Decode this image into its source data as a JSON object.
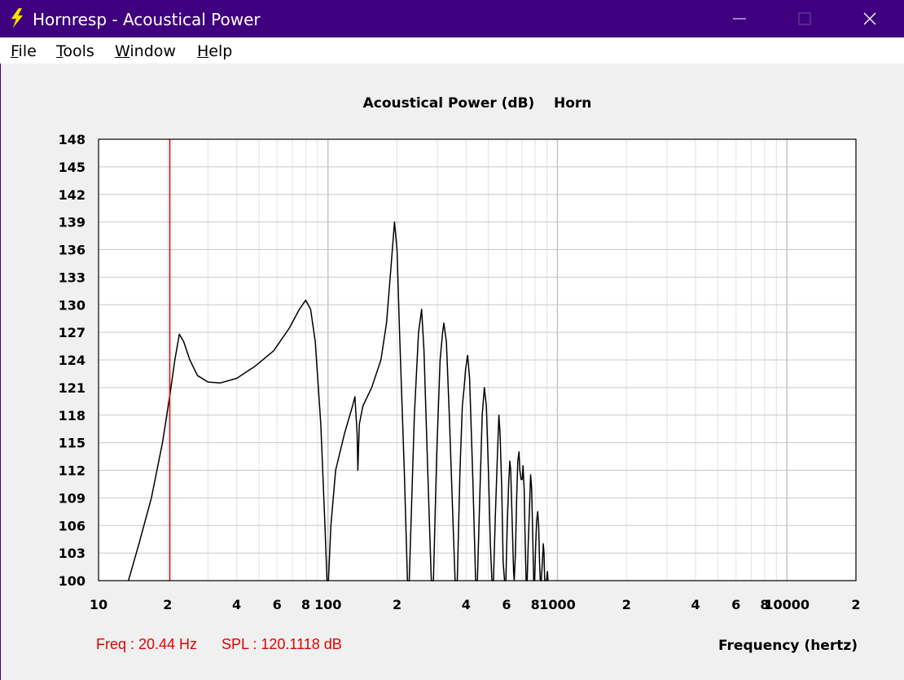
{
  "window": {
    "title": "Hornresp - Acoustical Power",
    "controls": [
      "minimize",
      "maximize",
      "close"
    ]
  },
  "menu": {
    "items": [
      {
        "label": "File",
        "mnemonic": "F"
      },
      {
        "label": "Tools",
        "mnemonic": "T"
      },
      {
        "label": "Window",
        "mnemonic": "W"
      },
      {
        "label": "Help",
        "mnemonic": "H"
      }
    ]
  },
  "status": {
    "freq": "Freq : 20.44 Hz",
    "spl": "SPL : 120.1118 dB"
  },
  "colors": {
    "titlebar": "#3f007f",
    "cursor": "#e00000",
    "curve": "#000000",
    "grid": "#c8c8c8"
  },
  "chart_data": {
    "type": "line",
    "title": "Acoustical Power (dB)    Horn",
    "xlabel": "Frequency (hertz)",
    "ylabel": "",
    "x_scale": "log",
    "xlim": [
      10,
      20000
    ],
    "ylim": [
      100,
      148
    ],
    "y_ticks": [
      100,
      103,
      106,
      109,
      112,
      115,
      118,
      121,
      124,
      127,
      130,
      133,
      136,
      139,
      142,
      145,
      148
    ],
    "x_tick_labels": [
      {
        "value": 10,
        "label": "10"
      },
      {
        "value": 20,
        "label": "2"
      },
      {
        "value": 40,
        "label": "4"
      },
      {
        "value": 60,
        "label": "6"
      },
      {
        "value": 80,
        "label": "8"
      },
      {
        "value": 100,
        "label": "100"
      },
      {
        "value": 200,
        "label": "2"
      },
      {
        "value": 400,
        "label": "4"
      },
      {
        "value": 600,
        "label": "6"
      },
      {
        "value": 800,
        "label": "8"
      },
      {
        "value": 1000,
        "label": "1000"
      },
      {
        "value": 2000,
        "label": "2"
      },
      {
        "value": 4000,
        "label": "4"
      },
      {
        "value": 6000,
        "label": "6"
      },
      {
        "value": 8000,
        "label": "8"
      },
      {
        "value": 10000,
        "label": "10000"
      },
      {
        "value": 20000,
        "label": "2"
      }
    ],
    "grid": true,
    "cursor_freq": 20.44,
    "series": [
      {
        "points": [
          [
            13.5,
            100
          ],
          [
            15,
            104
          ],
          [
            17,
            109
          ],
          [
            19,
            115
          ],
          [
            20.44,
            120.1
          ],
          [
            21.5,
            124
          ],
          [
            22.5,
            126.8
          ],
          [
            23.5,
            126
          ],
          [
            25,
            124
          ],
          [
            27,
            122.3
          ],
          [
            30,
            121.6
          ],
          [
            34,
            121.5
          ],
          [
            40,
            122
          ],
          [
            48,
            123.3
          ],
          [
            58,
            125
          ],
          [
            68,
            127.5
          ],
          [
            75,
            129.5
          ],
          [
            80,
            130.5
          ],
          [
            84,
            129.5
          ],
          [
            88,
            126
          ],
          [
            93,
            117
          ],
          [
            97,
            106
          ],
          [
            99,
            100
          ],
          [
            100.5,
            100
          ],
          [
            103,
            106
          ],
          [
            108,
            112
          ],
          [
            118,
            116
          ],
          [
            128,
            119
          ],
          [
            131,
            120
          ],
          [
            134,
            116
          ],
          [
            135,
            112
          ],
          [
            137,
            117
          ],
          [
            142,
            119
          ],
          [
            155,
            121
          ],
          [
            170,
            124
          ],
          [
            180,
            128
          ],
          [
            188,
            134
          ],
          [
            195,
            139
          ],
          [
            200,
            136
          ],
          [
            205,
            127
          ],
          [
            215,
            112
          ],
          [
            222,
            100
          ],
          [
            226,
            100
          ],
          [
            238,
            118
          ],
          [
            248,
            127
          ],
          [
            256,
            129.5
          ],
          [
            262,
            125
          ],
          [
            272,
            112
          ],
          [
            282,
            100
          ],
          [
            288,
            100
          ],
          [
            298,
            114
          ],
          [
            308,
            124
          ],
          [
            316,
            127
          ],
          [
            320,
            128
          ],
          [
            328,
            126
          ],
          [
            338,
            118
          ],
          [
            350,
            107
          ],
          [
            358,
            100
          ],
          [
            366,
            100
          ],
          [
            376,
            112
          ],
          [
            385,
            119
          ],
          [
            392,
            121
          ],
          [
            398,
            123
          ],
          [
            406,
            124.5
          ],
          [
            414,
            122
          ],
          [
            428,
            111
          ],
          [
            440,
            100
          ],
          [
            448,
            100
          ],
          [
            460,
            110
          ],
          [
            470,
            118
          ],
          [
            480,
            121
          ],
          [
            490,
            119
          ],
          [
            500,
            112
          ],
          [
            510,
            104
          ],
          [
            518,
            100
          ],
          [
            526,
            100
          ],
          [
            536,
            107
          ],
          [
            548,
            114
          ],
          [
            556,
            118
          ],
          [
            562,
            116
          ],
          [
            572,
            110
          ],
          [
            580,
            102
          ],
          [
            588,
            100
          ],
          [
            596,
            100
          ],
          [
            604,
            106
          ],
          [
            614,
            111
          ],
          [
            620,
            113
          ],
          [
            626,
            112
          ],
          [
            634,
            107
          ],
          [
            644,
            101
          ],
          [
            648,
            100
          ],
          [
            656,
            103
          ],
          [
            664,
            109
          ],
          [
            672,
            113
          ],
          [
            680,
            114
          ],
          [
            686,
            112
          ],
          [
            694,
            111
          ],
          [
            702,
            111
          ],
          [
            708,
            112.5
          ],
          [
            716,
            110
          ],
          [
            724,
            104
          ],
          [
            730,
            100
          ],
          [
            738,
            100
          ],
          [
            746,
            104
          ],
          [
            756,
            108
          ],
          [
            764,
            111.5
          ],
          [
            772,
            110
          ],
          [
            780,
            105
          ],
          [
            788,
            100
          ],
          [
            796,
            100
          ],
          [
            804,
            104
          ],
          [
            812,
            106.5
          ],
          [
            820,
            107.5
          ],
          [
            828,
            106
          ],
          [
            836,
            102
          ],
          [
            842,
            100
          ],
          [
            850,
            100
          ],
          [
            860,
            102
          ],
          [
            868,
            104
          ],
          [
            874,
            103
          ],
          [
            880,
            100
          ],
          [
            895,
            100
          ],
          [
            905,
            101
          ],
          [
            910,
            100
          ]
        ]
      }
    ]
  }
}
